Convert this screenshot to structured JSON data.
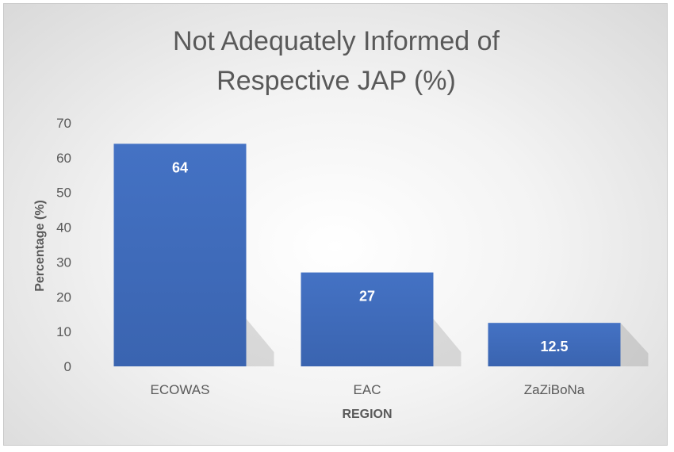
{
  "chart_data": {
    "type": "bar",
    "title_lines": [
      "Not Adequately Informed of",
      "Respective JAP (%)"
    ],
    "categories": [
      "ECOWAS",
      "EAC",
      "ZaZiBoNa"
    ],
    "values": [
      64,
      27,
      12.5
    ],
    "data_labels": [
      "64",
      "27",
      "12.5"
    ],
    "xlabel": "REGION",
    "ylabel": "Percentage (%)",
    "ylim": [
      0,
      70
    ],
    "yticks": [
      0,
      10,
      20,
      30,
      40,
      50,
      60,
      70
    ],
    "grid": false,
    "legend": "none",
    "bar_color": "#4472C4"
  }
}
